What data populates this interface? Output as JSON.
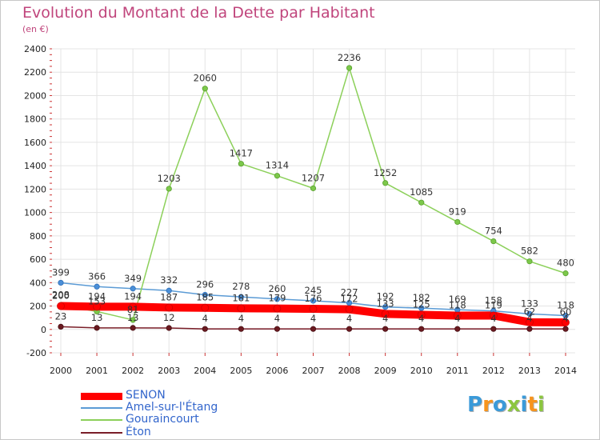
{
  "header": {
    "title": "Evolution du Montant de la Dette par Habitant",
    "subtitle": "(en €)"
  },
  "colors": {
    "title": "#c0457c",
    "legend_text": "#3366cc",
    "grid": "#e4e4e4",
    "axis_text": "#222222"
  },
  "chart_data": {
    "type": "line",
    "title": "Evolution du Montant de la Dette par Habitant",
    "subtitle": "(en €)",
    "xlabel": "",
    "ylabel": "",
    "x": [
      "2000",
      "2001",
      "2002",
      "2003",
      "2004",
      "2005",
      "2006",
      "2007",
      "2008",
      "2009",
      "2010",
      "2011",
      "2012",
      "2013",
      "2014"
    ],
    "y_ticks": [
      "-200",
      "0",
      "200",
      "400",
      "600",
      "800",
      "1000",
      "1200",
      "1400",
      "1600",
      "1800",
      "2000",
      "2200",
      "2400"
    ],
    "ylim": [
      -200,
      2400
    ],
    "grid": true,
    "legend_position": "bottom-left",
    "series": [
      {
        "name": "SENON",
        "color": "#ff0000",
        "values": [
          200,
          194,
          194,
          187,
          185,
          181,
          179,
          176,
          172,
          133,
          125,
          118,
          119,
          62,
          60
        ],
        "labels": [
          "200",
          "194",
          "194",
          "187",
          "185",
          "181",
          "179",
          "176",
          "172",
          "133",
          "125",
          "118",
          "119",
          "62",
          "60"
        ]
      },
      {
        "name": "Amel-sur-l'Étang",
        "color": "#5b9bd5",
        "values": [
          399,
          366,
          349,
          332,
          296,
          278,
          260,
          245,
          227,
          192,
          182,
          169,
          158,
          133,
          118
        ],
        "labels": [
          "399",
          "366",
          "349",
          "332",
          "296",
          "278",
          "260",
          "245",
          "227",
          "192",
          "182",
          "169",
          "158",
          "133",
          "118"
        ]
      },
      {
        "name": "Gouraincourt",
        "color": "#8cd05a",
        "values": [
          208,
          153,
          81,
          1203,
          2060,
          1417,
          1314,
          1207,
          2236,
          1252,
          1085,
          919,
          754,
          582,
          480
        ],
        "labels": [
          "208",
          "153",
          "81",
          "1203",
          "2060",
          "1417",
          "1314",
          "1207",
          "2236",
          "1252",
          "1085",
          "919",
          "754",
          "582",
          "480"
        ]
      },
      {
        "name": "Éton",
        "color": "#7a1e28",
        "values": [
          23,
          13,
          13,
          12,
          4,
          4,
          4,
          4,
          4,
          4,
          4,
          4,
          4,
          4,
          4
        ],
        "labels": [
          "23",
          "13",
          "13",
          "12",
          "4",
          "4",
          "4",
          "4",
          "4",
          "4",
          "4",
          "4",
          "4",
          "4",
          "4"
        ]
      }
    ]
  },
  "logo": {
    "text": "Proxiti",
    "letters": [
      "P",
      "r",
      "o",
      "x",
      "i",
      "t",
      "i"
    ],
    "letter_colors": [
      "#3a9ad9",
      "#f7941d",
      "#3a9ad9",
      "#8cc63f",
      "#3a9ad9",
      "#f7941d",
      "#8cc63f"
    ]
  }
}
